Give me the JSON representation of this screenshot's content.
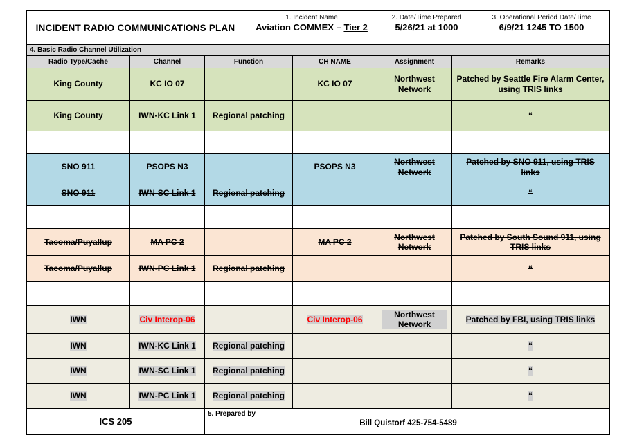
{
  "header": {
    "title": "INCIDENT RADIO COMMUNICATIONS PLAN",
    "incident_name_label": "1. Incident Name",
    "incident_name_prefix": "Aviation COMMEX – ",
    "incident_name_underlined": "Tier 2",
    "date_prepared_label": "2. Date/Time Prepared",
    "date_prepared_value": "5/26/21 at 1000",
    "op_period_label": "3. Operational Period Date/Time",
    "op_period_value": "6/9/21  1245 TO 1500"
  },
  "section4": {
    "label": "4. Basic Radio Channel Utilization"
  },
  "table": {
    "columns": [
      "Radio Type/Cache",
      "Channel",
      "Function",
      "CH NAME",
      "Assignment",
      "Remarks"
    ],
    "rows": [
      {
        "bg": "green",
        "struck": false,
        "highlight": false,
        "red_cols": [],
        "cells": [
          "King County",
          "KC IO 07",
          "",
          "KC IO 07",
          "Northwest Network",
          "Patched by Seattle Fire Alarm Center, using TRIS links"
        ]
      },
      {
        "bg": "green",
        "struck": false,
        "highlight": false,
        "red_cols": [],
        "cells": [
          "King County",
          "IWN-KC Link 1",
          "Regional patching",
          "",
          "",
          "“"
        ]
      },
      {
        "bg": "white",
        "struck": false,
        "highlight": false,
        "red_cols": [],
        "cells": [
          "",
          "",
          "",
          "",
          "",
          ""
        ]
      },
      {
        "bg": "blue",
        "struck": true,
        "highlight": false,
        "red_cols": [],
        "cells": [
          "SNO 911",
          "PSOPS N3",
          "",
          "PSOPS N3",
          "Northwest Network",
          "Patched by SNO 911, using TRIS links"
        ]
      },
      {
        "bg": "blue",
        "struck": true,
        "highlight": false,
        "red_cols": [],
        "cells": [
          "SNO 911",
          "IWN-SC Link 1",
          "Regional patching",
          "",
          "",
          "“"
        ]
      },
      {
        "bg": "white",
        "struck": false,
        "highlight": false,
        "red_cols": [],
        "cells": [
          "",
          "",
          "",
          "",
          "",
          ""
        ]
      },
      {
        "bg": "peach",
        "struck": true,
        "highlight": false,
        "red_cols": [],
        "cells": [
          "Tacoma/Puyallup",
          "MA PC 2",
          "",
          "MA PC 2",
          "Northwest Network",
          "Patched by South Sound 911, using TRIS links"
        ]
      },
      {
        "bg": "peach",
        "struck": true,
        "highlight": false,
        "red_cols": [],
        "cells": [
          "Tacoma/Puyallup",
          "IWN-PC Link 1",
          "Regional patching",
          "",
          "",
          "“"
        ]
      },
      {
        "bg": "white",
        "struck": false,
        "highlight": false,
        "red_cols": [],
        "cells": [
          "",
          "",
          "",
          "",
          "",
          ""
        ]
      },
      {
        "bg": "cream",
        "struck": false,
        "highlight": true,
        "red_cols": [
          1,
          3
        ],
        "cells": [
          "IWN",
          "Civ Interop-06",
          "",
          "Civ Interop-06",
          "Northwest Network",
          "Patched by FBI, using TRIS links"
        ]
      },
      {
        "bg": "cream",
        "struck": false,
        "highlight": true,
        "red_cols": [],
        "cells": [
          "IWN",
          "IWN-KC Link 1",
          "Regional patching",
          "",
          "",
          "“"
        ]
      },
      {
        "bg": "cream",
        "struck": true,
        "highlight": true,
        "red_cols": [],
        "cells": [
          "IWN",
          "IWN-SC Link 1",
          "Regional patching",
          "",
          "",
          "“"
        ]
      },
      {
        "bg": "cream",
        "struck": true,
        "highlight": true,
        "red_cols": [],
        "cells": [
          "IWN",
          "IWN-PC Link 1",
          "Regional patching",
          "",
          "",
          "“"
        ]
      }
    ]
  },
  "footer": {
    "form_id": "ICS 205",
    "prepared_by_label": "5. Prepared by",
    "prepared_by_value": "Bill Quistorf 425-754-5489"
  },
  "colors": {
    "green": "#d6e3bc",
    "blue": "#b3d9e6",
    "peach": "#fbe5d3",
    "cream": "#eeece1",
    "white": "#ffffff",
    "header_gray": "#d9d9d9",
    "highlight_gray": "#d0d0d0",
    "red_text": "#ff0000"
  }
}
